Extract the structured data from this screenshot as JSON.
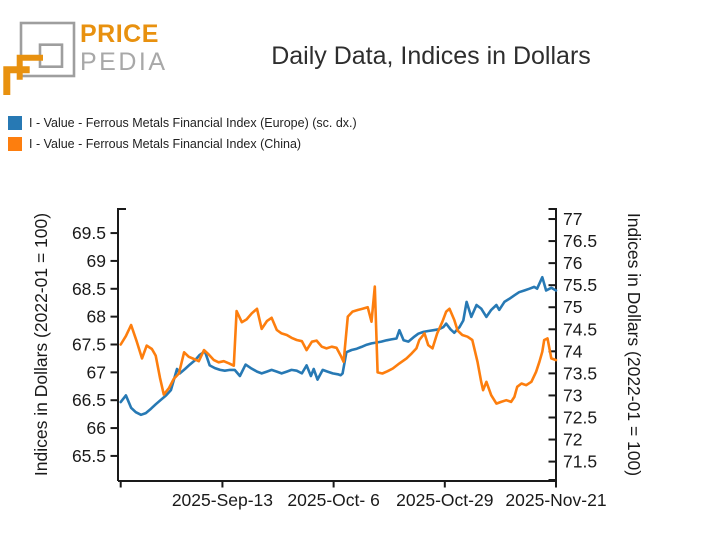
{
  "logo": {
    "brand_top": "PRICE",
    "brand_bottom": "PEDIA",
    "orange": "#e8910f",
    "gray": "#9e9e9e",
    "text_gray": "#a8a8a8"
  },
  "header": {
    "title": "Daily Data, Indices in Dollars"
  },
  "legend": {
    "items": [
      {
        "label": "I - Value - Ferrous Metals Financial Index (Europe) (sc. dx.)",
        "color": "#2779b4"
      },
      {
        "label": "I - Value - Ferrous Metals Financial Index (China)",
        "color": "#fd7e0e"
      }
    ]
  },
  "chart_data": {
    "type": "line",
    "title": "Daily Data, Indices in Dollars",
    "grid": false,
    "legend_position": "top-left",
    "x_axis": {
      "domain_days": [
        0,
        92
      ],
      "edge_tick_day": 0,
      "tick_days": [
        21.5,
        45,
        68.5,
        92
      ],
      "tick_labels": [
        "2025-Sep-13",
        "2025-Oct- 6",
        "2025-Oct-29",
        "2025-Nov-21"
      ]
    },
    "left_axis": {
      "label": "Indices in Dollars (2022-01 = 100)",
      "ticks": [
        69.5,
        69,
        68.5,
        68,
        67.5,
        67,
        66.5,
        66,
        65.5
      ],
      "range": [
        65.05,
        69.95
      ]
    },
    "right_axis": {
      "label": "Indices in Dollars (2022-01 = 100)",
      "ticks": [
        77,
        76.5,
        76,
        75.5,
        75,
        74.5,
        74,
        73.5,
        73,
        72.5,
        72,
        71.5
      ],
      "range": [
        71.06,
        77.25
      ]
    },
    "series": [
      {
        "name": "I - Value - Ferrous Metals Financial Index (Europe) (sc. dx.)",
        "axis": "right",
        "color": "#2779b4",
        "points": [
          [
            0,
            72.85
          ],
          [
            1.1,
            73.0
          ],
          [
            2.2,
            72.72
          ],
          [
            3.2,
            72.62
          ],
          [
            4.3,
            72.56
          ],
          [
            5.3,
            72.6
          ],
          [
            6.4,
            72.7
          ],
          [
            7.4,
            72.8
          ],
          [
            8.5,
            72.9
          ],
          [
            9.6,
            73.0
          ],
          [
            10.6,
            73.12
          ],
          [
            11.9,
            73.6
          ],
          [
            12.5,
            73.5
          ],
          [
            13.6,
            73.6
          ],
          [
            14.6,
            73.7
          ],
          [
            15.7,
            73.8
          ],
          [
            16.7,
            73.92
          ],
          [
            17.8,
            74.0
          ],
          [
            18.8,
            73.68
          ],
          [
            19.9,
            73.62
          ],
          [
            21,
            73.58
          ],
          [
            22,
            73.56
          ],
          [
            23.1,
            73.58
          ],
          [
            24.1,
            73.58
          ],
          [
            25.2,
            73.44
          ],
          [
            26.4,
            73.7
          ],
          [
            27.5,
            73.62
          ],
          [
            28.8,
            73.54
          ],
          [
            29.8,
            73.5
          ],
          [
            30.9,
            73.54
          ],
          [
            31.9,
            73.58
          ],
          [
            33,
            73.54
          ],
          [
            34,
            73.5
          ],
          [
            35.1,
            73.54
          ],
          [
            36.1,
            73.58
          ],
          [
            37.2,
            73.56
          ],
          [
            38.3,
            73.5
          ],
          [
            39.3,
            73.68
          ],
          [
            40.2,
            73.44
          ],
          [
            40.8,
            73.6
          ],
          [
            41.6,
            73.36
          ],
          [
            42.7,
            73.58
          ],
          [
            43.7,
            73.54
          ],
          [
            44.8,
            73.5
          ],
          [
            45.9,
            73.48
          ],
          [
            46.5,
            73.46
          ],
          [
            46.9,
            73.5
          ],
          [
            47.7,
            73.98
          ],
          [
            48.8,
            74.03
          ],
          [
            49.9,
            74.06
          ],
          [
            50.9,
            74.1
          ],
          [
            52,
            74.15
          ],
          [
            53,
            74.18
          ],
          [
            54.1,
            74.2
          ],
          [
            55.1,
            74.22
          ],
          [
            56.2,
            74.25
          ],
          [
            57.2,
            74.27
          ],
          [
            58.3,
            74.29
          ],
          [
            58.9,
            74.48
          ],
          [
            59.8,
            74.25
          ],
          [
            60.8,
            74.22
          ],
          [
            61.9,
            74.32
          ],
          [
            62.9,
            74.4
          ],
          [
            64,
            74.44
          ],
          [
            65,
            74.46
          ],
          [
            66.1,
            74.48
          ],
          [
            67.2,
            74.5
          ],
          [
            68.2,
            74.55
          ],
          [
            68.8,
            74.63
          ],
          [
            69.7,
            74.5
          ],
          [
            70.5,
            74.42
          ],
          [
            71.6,
            74.55
          ],
          [
            72.4,
            74.7
          ],
          [
            73.1,
            75.12
          ],
          [
            74.1,
            74.78
          ],
          [
            75.2,
            75.05
          ],
          [
            76.2,
            74.97
          ],
          [
            77.3,
            74.78
          ],
          [
            78.3,
            74.94
          ],
          [
            79.4,
            75.05
          ],
          [
            80,
            74.94
          ],
          [
            81.1,
            75.12
          ],
          [
            82.1,
            75.19
          ],
          [
            83.2,
            75.27
          ],
          [
            84.2,
            75.34
          ],
          [
            85.3,
            75.38
          ],
          [
            86.4,
            75.42
          ],
          [
            87.4,
            75.46
          ],
          [
            88,
            75.42
          ],
          [
            89.1,
            75.68
          ],
          [
            89.9,
            75.38
          ],
          [
            91,
            75.44
          ],
          [
            92,
            75.38
          ]
        ]
      },
      {
        "name": "I - Value - Ferrous Metals Financial Index (China)",
        "axis": "left",
        "color": "#fd7e0e",
        "points": [
          [
            0,
            67.5
          ],
          [
            1.1,
            67.65
          ],
          [
            2.2,
            67.85
          ],
          [
            3.4,
            67.55
          ],
          [
            4.5,
            67.25
          ],
          [
            5.5,
            67.48
          ],
          [
            6.6,
            67.42
          ],
          [
            7.4,
            67.3
          ],
          [
            8.3,
            66.9
          ],
          [
            9.1,
            66.6
          ],
          [
            10.2,
            66.72
          ],
          [
            11.2,
            66.88
          ],
          [
            12.3,
            66.98
          ],
          [
            13.4,
            67.36
          ],
          [
            14.4,
            67.28
          ],
          [
            15.5,
            67.24
          ],
          [
            16.5,
            67.2
          ],
          [
            17.6,
            67.4
          ],
          [
            18.6,
            67.32
          ],
          [
            19.7,
            67.22
          ],
          [
            20.7,
            67.18
          ],
          [
            21.8,
            67.2
          ],
          [
            22.9,
            67.16
          ],
          [
            23.9,
            67.12
          ],
          [
            24.5,
            68.1
          ],
          [
            25.6,
            67.9
          ],
          [
            26.6,
            67.95
          ],
          [
            27.7,
            68.06
          ],
          [
            28.8,
            68.14
          ],
          [
            29.8,
            67.78
          ],
          [
            30.9,
            67.92
          ],
          [
            31.9,
            67.98
          ],
          [
            33,
            67.76
          ],
          [
            34,
            67.7
          ],
          [
            35.1,
            67.67
          ],
          [
            36.1,
            67.62
          ],
          [
            37.2,
            67.58
          ],
          [
            38.3,
            67.56
          ],
          [
            39.3,
            67.4
          ],
          [
            40.4,
            67.55
          ],
          [
            41.4,
            67.57
          ],
          [
            42.5,
            67.46
          ],
          [
            43.5,
            67.43
          ],
          [
            44.6,
            67.46
          ],
          [
            45.6,
            67.44
          ],
          [
            46.5,
            67.3
          ],
          [
            47.1,
            67.19
          ],
          [
            48,
            68.0
          ],
          [
            49,
            68.09
          ],
          [
            50.1,
            68.12
          ],
          [
            51.1,
            68.14
          ],
          [
            52.2,
            68.17
          ],
          [
            53,
            67.91
          ],
          [
            53.7,
            68.54
          ],
          [
            54.3,
            67.0
          ],
          [
            55.3,
            66.98
          ],
          [
            56.4,
            67.02
          ],
          [
            57.5,
            67.07
          ],
          [
            58.9,
            67.16
          ],
          [
            60.4,
            67.25
          ],
          [
            61.5,
            67.34
          ],
          [
            62.5,
            67.43
          ],
          [
            63.1,
            67.58
          ],
          [
            64.2,
            67.7
          ],
          [
            65,
            67.49
          ],
          [
            65.9,
            67.43
          ],
          [
            66.9,
            67.7
          ],
          [
            68,
            67.91
          ],
          [
            68.8,
            68.09
          ],
          [
            69.5,
            68.14
          ],
          [
            70.5,
            67.94
          ],
          [
            71.2,
            67.75
          ],
          [
            72.2,
            67.67
          ],
          [
            73.3,
            67.64
          ],
          [
            74.3,
            67.58
          ],
          [
            75.4,
            67.19
          ],
          [
            76.2,
            66.83
          ],
          [
            76.6,
            66.68
          ],
          [
            77.3,
            66.83
          ],
          [
            78.3,
            66.59
          ],
          [
            79.4,
            66.44
          ],
          [
            80.4,
            66.47
          ],
          [
            81.5,
            66.5
          ],
          [
            82.5,
            66.47
          ],
          [
            83.2,
            66.56
          ],
          [
            83.8,
            66.74
          ],
          [
            84.7,
            66.8
          ],
          [
            85.7,
            66.77
          ],
          [
            86.8,
            66.83
          ],
          [
            87.8,
            67.01
          ],
          [
            88.5,
            67.19
          ],
          [
            89.1,
            67.37
          ],
          [
            89.5,
            67.58
          ],
          [
            90.2,
            67.61
          ],
          [
            91,
            67.25
          ],
          [
            92,
            67.22
          ]
        ]
      }
    ]
  }
}
